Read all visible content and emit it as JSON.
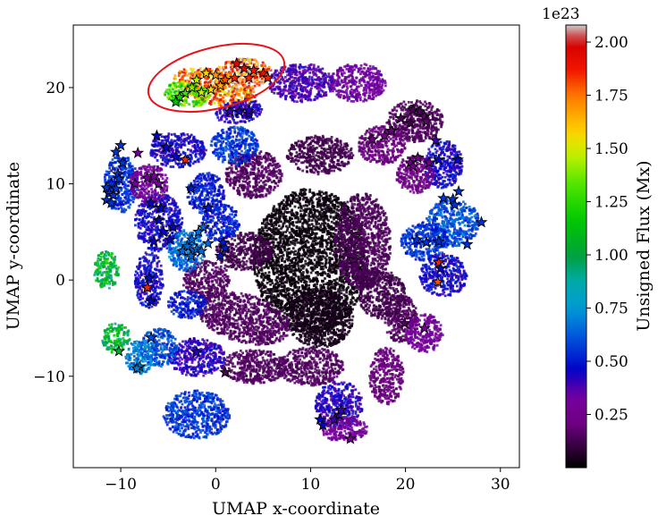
{
  "chart_data": {
    "type": "scatter",
    "xlabel": "UMAP x-coordinate",
    "ylabel": "UMAP y-coordinate",
    "xlim": [
      -15,
      32
    ],
    "ylim": [
      -19.5,
      26.5
    ],
    "xticks": [
      -10,
      0,
      10,
      20,
      30
    ],
    "yticks": [
      -10,
      0,
      10,
      20
    ],
    "xtick_labels": [
      "−10",
      "0",
      "10",
      "20",
      "30"
    ],
    "ytick_labels": [
      "−10",
      "0",
      "10",
      "20"
    ],
    "grid": false,
    "colorbar": {
      "label": "Unsigned Flux (Mx)",
      "offset_text": "1e23",
      "colormap": "nipy_spectral",
      "range": [
        0.0,
        2.08
      ],
      "ticks": [
        0.25,
        0.5,
        0.75,
        1.0,
        1.25,
        1.5,
        1.75,
        2.0
      ],
      "tick_labels": [
        "0.25",
        "0.50",
        "0.75",
        "1.00",
        "1.25",
        "1.50",
        "1.75",
        "2.00"
      ]
    },
    "clusters": [
      {
        "x": 0,
        "y": 20,
        "rx": 4.5,
        "ry": 1.8,
        "rot": 15,
        "v": 1.75
      },
      {
        "x": 3,
        "y": 21.5,
        "rx": 3,
        "ry": 1.5,
        "rot": 0,
        "v": 1.88
      },
      {
        "x": -3,
        "y": 19.3,
        "rx": 2.5,
        "ry": 1.2,
        "rot": 10,
        "v": 1.3
      },
      {
        "x": 2.5,
        "y": 17.5,
        "rx": 2.5,
        "ry": 1.2,
        "rot": -10,
        "v": 0.42
      },
      {
        "x": 9,
        "y": 20.5,
        "rx": 3.5,
        "ry": 2,
        "rot": 0,
        "v": 0.38
      },
      {
        "x": 15,
        "y": 20.5,
        "rx": 3,
        "ry": 2,
        "rot": 0,
        "v": 0.32
      },
      {
        "x": 21,
        "y": 16.5,
        "rx": 3,
        "ry": 2.2,
        "rot": 0,
        "v": 0.15
      },
      {
        "x": 17.5,
        "y": 14,
        "rx": 2.5,
        "ry": 2,
        "rot": 0,
        "v": 0.2
      },
      {
        "x": 24,
        "y": 12,
        "rx": 2,
        "ry": 2.5,
        "rot": 0,
        "v": 0.45
      },
      {
        "x": 21,
        "y": 11,
        "rx": 2,
        "ry": 2,
        "rot": 0,
        "v": 0.22
      },
      {
        "x": 25,
        "y": 6,
        "rx": 2.8,
        "ry": 2.5,
        "rot": 0,
        "v": 0.6
      },
      {
        "x": 22,
        "y": 4,
        "rx": 2.5,
        "ry": 2,
        "rot": 0,
        "v": 0.55
      },
      {
        "x": 24,
        "y": 0.5,
        "rx": 2.5,
        "ry": 2.2,
        "rot": 0,
        "v": 0.45
      },
      {
        "x": 19.5,
        "y": -4,
        "rx": 1.8,
        "ry": 2.5,
        "rot": 0,
        "v": 0.15
      },
      {
        "x": 22,
        "y": -5.5,
        "rx": 2,
        "ry": 2,
        "rot": 0,
        "v": 0.3
      },
      {
        "x": 18,
        "y": -10,
        "rx": 1.8,
        "ry": 3,
        "rot": 0,
        "v": 0.2
      },
      {
        "x": 13,
        "y": -13,
        "rx": 2.5,
        "ry": 2.5,
        "rot": 0,
        "v": 0.42
      },
      {
        "x": 13.5,
        "y": -15.5,
        "rx": 2.5,
        "ry": 1.3,
        "rot": 0,
        "v": 0.3
      },
      {
        "x": 10,
        "y": 2,
        "rx": 6,
        "ry": 7.5,
        "rot": 0,
        "v": 0.02
      },
      {
        "x": 11,
        "y": -4,
        "rx": 3.5,
        "ry": 3,
        "rot": 0,
        "v": 0.04
      },
      {
        "x": 4,
        "y": 11,
        "rx": 3,
        "ry": 2.5,
        "rot": 0,
        "v": 0.15
      },
      {
        "x": 11,
        "y": 13,
        "rx": 3.5,
        "ry": 2,
        "rot": 0,
        "v": 0.12
      },
      {
        "x": 15.5,
        "y": 4,
        "rx": 3,
        "ry": 5,
        "rot": 0,
        "v": 0.14
      },
      {
        "x": 17.5,
        "y": -1.5,
        "rx": 2.5,
        "ry": 2.5,
        "rot": 0,
        "v": 0.12
      },
      {
        "x": 3,
        "y": -4,
        "rx": 5,
        "ry": 2.5,
        "rot": 15,
        "v": 0.15
      },
      {
        "x": 4,
        "y": -9,
        "rx": 3.5,
        "ry": 1.8,
        "rot": 0,
        "v": 0.15
      },
      {
        "x": 10,
        "y": -9,
        "rx": 3.5,
        "ry": 2,
        "rot": 0,
        "v": 0.15
      },
      {
        "x": 3,
        "y": 3,
        "rx": 3,
        "ry": 2,
        "rot": 0,
        "v": 0.12
      },
      {
        "x": -1,
        "y": 0,
        "rx": 2.5,
        "ry": 2,
        "rot": 0,
        "v": 0.15
      },
      {
        "x": -3,
        "y": -2.5,
        "rx": 2,
        "ry": 1.5,
        "rot": 0,
        "v": 0.5
      },
      {
        "x": -2,
        "y": -8,
        "rx": 3,
        "ry": 2,
        "rot": 0,
        "v": 0.42
      },
      {
        "x": -2,
        "y": -14,
        "rx": 3.5,
        "ry": 2.5,
        "rot": 0,
        "v": 0.55
      },
      {
        "x": -6,
        "y": -7,
        "rx": 2,
        "ry": 2,
        "rot": 0,
        "v": 0.6
      },
      {
        "x": -10.5,
        "y": -6,
        "rx": 1.5,
        "ry": 1.6,
        "rot": 0,
        "v": 1.05
      },
      {
        "x": -8,
        "y": -8,
        "rx": 1.5,
        "ry": 1.8,
        "rot": 0,
        "v": 0.7
      },
      {
        "x": -11.5,
        "y": 1,
        "rx": 1.3,
        "ry": 2,
        "rot": 0,
        "v": 1.05
      },
      {
        "x": -7,
        "y": 0,
        "rx": 1.5,
        "ry": 3,
        "rot": 0,
        "v": 0.45
      },
      {
        "x": -10,
        "y": 10,
        "rx": 1.8,
        "ry": 3,
        "rot": 0,
        "v": 0.55
      },
      {
        "x": -6,
        "y": 6,
        "rx": 2.5,
        "ry": 3,
        "rot": 0,
        "v": 0.45
      },
      {
        "x": -7,
        "y": 10,
        "rx": 2,
        "ry": 2,
        "rot": 0,
        "v": 0.3
      },
      {
        "x": -4,
        "y": 13.5,
        "rx": 3,
        "ry": 1.8,
        "rot": 0,
        "v": 0.45
      },
      {
        "x": -1,
        "y": 9,
        "rx": 2,
        "ry": 2.2,
        "rot": 0,
        "v": 0.5
      },
      {
        "x": -3,
        "y": 3,
        "rx": 2,
        "ry": 2.2,
        "rot": 0,
        "v": 0.65
      },
      {
        "x": 2,
        "y": 14,
        "rx": 2.5,
        "ry": 2,
        "rot": 0,
        "v": 0.55
      },
      {
        "x": 0.5,
        "y": 6,
        "rx": 2,
        "ry": 2,
        "rot": 0,
        "v": 0.5
      }
    ],
    "stars": [
      {
        "x": 2.2,
        "y": 22.5,
        "v": 1.95
      },
      {
        "x": 3,
        "y": 22,
        "v": 1.95
      },
      {
        "x": 4,
        "y": 21.8,
        "v": 1.9
      },
      {
        "x": 5,
        "y": 21.5,
        "v": 1.9
      },
      {
        "x": 5.5,
        "y": 21,
        "v": 1.85
      },
      {
        "x": 3.5,
        "y": 21,
        "v": 1.85
      },
      {
        "x": 2,
        "y": 21,
        "v": 1.85
      },
      {
        "x": 1,
        "y": 20.8,
        "v": 1.8
      },
      {
        "x": 0,
        "y": 21.3,
        "v": 1.7
      },
      {
        "x": -1,
        "y": 21.5,
        "v": 1.55
      },
      {
        "x": -2,
        "y": 20.8,
        "v": 1.45
      },
      {
        "x": -2.5,
        "y": 20,
        "v": 1.4
      },
      {
        "x": -3.2,
        "y": 19.4,
        "v": 1.3
      },
      {
        "x": -3.8,
        "y": 19,
        "v": 1.2
      },
      {
        "x": -4.2,
        "y": 18.5,
        "v": 1.15
      },
      {
        "x": -1.5,
        "y": 19.5,
        "v": 1.5
      },
      {
        "x": -0.5,
        "y": 19.8,
        "v": 1.55
      },
      {
        "x": 0.5,
        "y": 20.2,
        "v": 1.65
      },
      {
        "x": 2.5,
        "y": 17.5,
        "v": 0.42
      },
      {
        "x": 3.5,
        "y": 17.3,
        "v": 0.42
      },
      {
        "x": 20.8,
        "y": 17.7,
        "v": 0.15
      },
      {
        "x": 21.5,
        "y": 17.5,
        "v": 0.15
      },
      {
        "x": 22,
        "y": 17,
        "v": 0.18
      },
      {
        "x": 19.5,
        "y": 16.8,
        "v": 0.15
      },
      {
        "x": 20.5,
        "y": 16.3,
        "v": 0.12
      },
      {
        "x": 22.2,
        "y": 16.5,
        "v": 0.18
      },
      {
        "x": 18.5,
        "y": 15.5,
        "v": 0.22
      },
      {
        "x": 17.8,
        "y": 15,
        "v": 0.22
      },
      {
        "x": 16.5,
        "y": 14.6,
        "v": 0.2
      },
      {
        "x": 23.2,
        "y": 14.5,
        "v": 0.4
      },
      {
        "x": 21.3,
        "y": 12.7,
        "v": 0.25
      },
      {
        "x": 20.5,
        "y": 12.2,
        "v": 0.22
      },
      {
        "x": 22.5,
        "y": 12.2,
        "v": 0.25
      },
      {
        "x": 23.5,
        "y": 12.5,
        "v": 0.45
      },
      {
        "x": 25.5,
        "y": 12.5,
        "v": 0.45
      },
      {
        "x": 20.8,
        "y": 11.8,
        "v": 0.22
      },
      {
        "x": 24,
        "y": 8.5,
        "v": 0.55
      },
      {
        "x": 25,
        "y": 8.4,
        "v": 0.55
      },
      {
        "x": 25.2,
        "y": 7.8,
        "v": 0.55
      },
      {
        "x": 25.6,
        "y": 9.2,
        "v": 0.55
      },
      {
        "x": 28,
        "y": 6,
        "v": 0.55
      },
      {
        "x": 26.5,
        "y": 3.7,
        "v": 0.55
      },
      {
        "x": 21.2,
        "y": 4.2,
        "v": 0.55
      },
      {
        "x": 22.2,
        "y": 3.9,
        "v": 0.55
      },
      {
        "x": 23.5,
        "y": 4,
        "v": 0.55
      },
      {
        "x": 23.5,
        "y": 1.8,
        "v": 1.85
      },
      {
        "x": 23.7,
        "y": 1.2,
        "v": 0.45
      },
      {
        "x": 23.4,
        "y": -0.2,
        "v": 1.8
      },
      {
        "x": 19.9,
        "y": -4.5,
        "v": 0.15
      },
      {
        "x": 22,
        "y": -5,
        "v": 0.3
      },
      {
        "x": 11,
        "y": -14.5,
        "v": 0.45
      },
      {
        "x": 11.3,
        "y": -15.1,
        "v": 0.45
      },
      {
        "x": 12.5,
        "y": -14.5,
        "v": 0.4
      },
      {
        "x": 13,
        "y": -14,
        "v": 0.4
      },
      {
        "x": 13.2,
        "y": -13.5,
        "v": 0.4
      },
      {
        "x": 14.2,
        "y": -16.5,
        "v": 0.3
      },
      {
        "x": 8,
        "y": -2.5,
        "v": 0.05
      },
      {
        "x": 3.5,
        "y": 17.6,
        "v": 0.42
      },
      {
        "x": 1.5,
        "y": 17.5,
        "v": 0.4
      },
      {
        "x": -10,
        "y": 14,
        "v": 0.55
      },
      {
        "x": -10.5,
        "y": 13.3,
        "v": 0.55
      },
      {
        "x": -9.8,
        "y": 12.2,
        "v": 0.55
      },
      {
        "x": -10.3,
        "y": 11,
        "v": 0.55
      },
      {
        "x": -11,
        "y": 10,
        "v": 0.55
      },
      {
        "x": -11.5,
        "y": 9.6,
        "v": 0.55
      },
      {
        "x": -11.2,
        "y": 9,
        "v": 0.55
      },
      {
        "x": -10.8,
        "y": 8.8,
        "v": 0.55
      },
      {
        "x": -11.5,
        "y": 8.3,
        "v": 0.55
      },
      {
        "x": -11,
        "y": 8,
        "v": 0.55
      },
      {
        "x": -10.5,
        "y": 9.5,
        "v": 0.55
      },
      {
        "x": -10.2,
        "y": 10.5,
        "v": 0.55
      },
      {
        "x": -8.2,
        "y": 13.2,
        "v": 0.3
      },
      {
        "x": -8.5,
        "y": 10,
        "v": 0.3
      },
      {
        "x": -7.2,
        "y": 10.6,
        "v": 0.3
      },
      {
        "x": -6.5,
        "y": 10.8,
        "v": 0.3
      },
      {
        "x": -6,
        "y": 10,
        "v": 0.3
      },
      {
        "x": -6.8,
        "y": 8,
        "v": 0.45
      },
      {
        "x": -5.8,
        "y": 7.5,
        "v": 0.45
      },
      {
        "x": -6,
        "y": 6.2,
        "v": 0.45
      },
      {
        "x": -5.5,
        "y": 5,
        "v": 0.45
      },
      {
        "x": -4.5,
        "y": 5.5,
        "v": 0.45
      },
      {
        "x": -6.5,
        "y": 4,
        "v": 0.45
      },
      {
        "x": -4.8,
        "y": 4.2,
        "v": 0.45
      },
      {
        "x": -3.2,
        "y": 12.5,
        "v": 1.85
      },
      {
        "x": -4.2,
        "y": 12.8,
        "v": 0.45
      },
      {
        "x": -6.2,
        "y": 15,
        "v": 0.45
      },
      {
        "x": -5.2,
        "y": 13.8,
        "v": 0.45
      },
      {
        "x": -2.6,
        "y": 9.5,
        "v": 0.5
      },
      {
        "x": -0.8,
        "y": 7.5,
        "v": 0.5
      },
      {
        "x": -1.3,
        "y": 5.5,
        "v": 0.65
      },
      {
        "x": -1.8,
        "y": 5,
        "v": 0.65
      },
      {
        "x": -2.5,
        "y": 4.2,
        "v": 0.65
      },
      {
        "x": -3,
        "y": 3.5,
        "v": 0.65
      },
      {
        "x": -2,
        "y": 3.2,
        "v": 0.65
      },
      {
        "x": -1.5,
        "y": 3,
        "v": 0.65
      },
      {
        "x": -3.5,
        "y": 3,
        "v": 0.65
      },
      {
        "x": -2.6,
        "y": 2.5,
        "v": 0.65
      },
      {
        "x": -0.8,
        "y": 3.8,
        "v": 0.65
      },
      {
        "x": 0.8,
        "y": 3.9,
        "v": 0.5
      },
      {
        "x": 1,
        "y": 3.3,
        "v": 0.5
      },
      {
        "x": 0.5,
        "y": 2.5,
        "v": 0.5
      },
      {
        "x": -7,
        "y": 0.2,
        "v": 0.45
      },
      {
        "x": -7.2,
        "y": -0.8,
        "v": 1.85
      },
      {
        "x": -6.8,
        "y": -2.2,
        "v": 0.45
      },
      {
        "x": -6.8,
        "y": -6,
        "v": 0.6
      },
      {
        "x": -10.2,
        "y": -7.4,
        "v": 1.05
      },
      {
        "x": -8,
        "y": -9,
        "v": 0.7
      },
      {
        "x": -8.3,
        "y": -9.2,
        "v": 0.7
      },
      {
        "x": -2,
        "y": -7.5,
        "v": 0.42
      },
      {
        "x": 1,
        "y": -9.6,
        "v": 0.15
      }
    ]
  }
}
